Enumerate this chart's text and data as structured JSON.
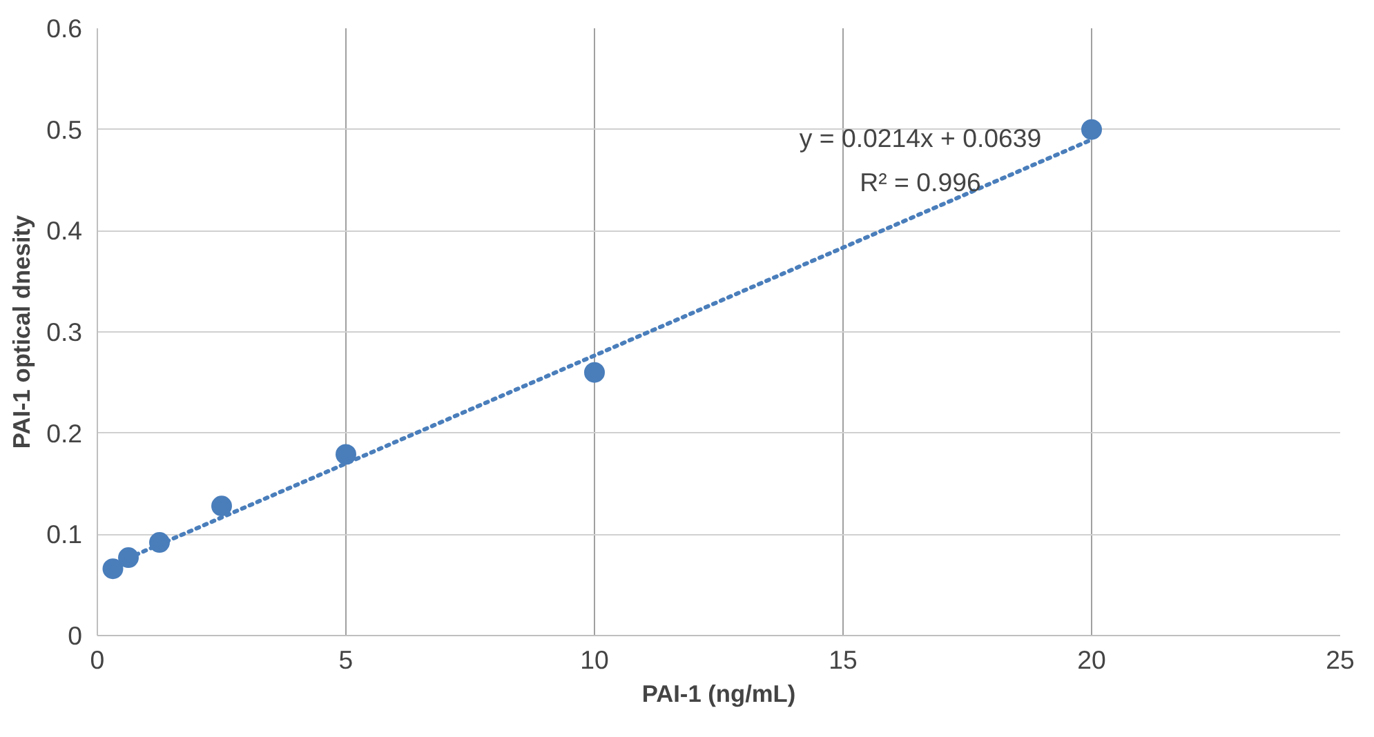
{
  "chart_data": {
    "type": "scatter",
    "xlabel": "PAI-1 (ng/mL)",
    "ylabel": "PAI-1 optical dnesity",
    "x": [
      0.3125,
      0.625,
      1.25,
      2.5,
      5,
      10,
      20
    ],
    "series": [
      {
        "color": "#4a7ebb",
        "values": [
          0.066,
          0.077,
          0.092,
          0.128,
          0.179,
          0.26,
          0.5
        ],
        "marker": "circle"
      },
      {
        "type": "line",
        "color": "#4a7ebb",
        "x": [
          0.3125,
          20
        ],
        "values": [
          0.07,
          0.49
        ],
        "line_style": "dotted",
        "marker": "none"
      }
    ],
    "annotations": [
      "y = 0.0214x + 0.0639",
      "R² = 0.996"
    ],
    "xlim": [
      0,
      25
    ],
    "xticks": [
      0,
      5,
      10,
      15,
      20,
      25
    ],
    "ylim": [
      0,
      0.6
    ],
    "yticks": [
      0,
      0.1,
      0.2,
      0.3,
      0.4,
      0.5,
      0.6
    ],
    "grid": true
  }
}
